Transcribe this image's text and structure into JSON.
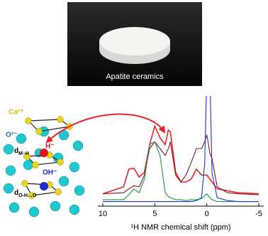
{
  "photo": {
    "label": "Apatite ceramics"
  },
  "structure": {
    "ca": "Ca²⁺",
    "o": "O²⁻",
    "h": "H⁻",
    "oh": "OH⁻",
    "dmh": {
      "main": "d",
      "sub": "M–H"
    },
    "doh": {
      "main": "d",
      "sub": "O-H…O"
    }
  },
  "chart_data": {
    "type": "line",
    "xlabel": "¹H NMR  chemical shift  (ppm)",
    "xlim": [
      10,
      -5
    ],
    "xticks": [
      10,
      5,
      0,
      -5
    ],
    "ylim": [
      0,
      105
    ],
    "x": [
      10,
      8,
      7.5,
      7,
      6.5,
      6,
      5.5,
      5,
      4.5,
      4,
      3.7,
      3.5,
      3,
      2.5,
      2,
      1.5,
      1,
      0.5,
      0.2,
      0,
      -0.3,
      -0.5,
      -1,
      -2,
      -3,
      -5
    ],
    "series": [
      {
        "color": "#e8232a",
        "values": [
          9,
          16,
          34,
          35,
          26,
          31,
          59,
          78,
          66,
          59,
          74,
          72,
          31,
          21,
          21,
          24,
          34,
          28,
          28,
          28,
          24,
          21,
          14,
          12,
          10,
          9
        ]
      },
      {
        "color": "#7a1a1a",
        "values": [
          9,
          10,
          14,
          17,
          16,
          28,
          55,
          62,
          55,
          48,
          55,
          62,
          28,
          21,
          28,
          41,
          55,
          55,
          62,
          69,
          50,
          45,
          16,
          10,
          9,
          8
        ]
      },
      {
        "color": "#1a9a4a",
        "values": [
          3,
          3,
          8,
          14,
          10,
          24,
          59,
          62,
          48,
          10,
          6,
          5,
          3,
          3,
          2,
          3,
          3,
          4,
          7,
          9,
          5,
          3,
          1,
          1,
          1,
          1
        ]
      },
      {
        "color": "#2233dd",
        "values": [
          1,
          1,
          1,
          1,
          1,
          1,
          1,
          1,
          1,
          1,
          1,
          1,
          1,
          1,
          1,
          1,
          2,
          5,
          40,
          130,
          130,
          30,
          5,
          2,
          1,
          1
        ]
      }
    ]
  }
}
